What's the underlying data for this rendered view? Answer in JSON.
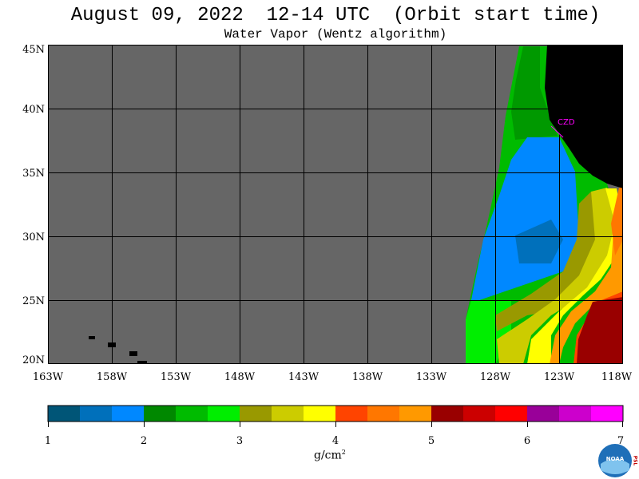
{
  "title": "August 09, 2022  12-14 UTC  (Orbit start time)",
  "subtitle": "Water Vapor (Wentz algorithm)",
  "map": {
    "lat_labels": [
      "45N",
      "40N",
      "35N",
      "30N",
      "25N",
      "20N"
    ],
    "lon_labels": [
      "163W",
      "158W",
      "153W",
      "148W",
      "143W",
      "138W",
      "133W",
      "128W",
      "123W",
      "118W"
    ],
    "station_label": "CZD",
    "colors": {
      "no_data": "#666666",
      "land": "#000000",
      "grid": "#000000",
      "station": "#ff00ff"
    }
  },
  "colorbar": {
    "colors": [
      "#005577",
      "#0070bb",
      "#0088ff",
      "#008800",
      "#00bb00",
      "#00ee00",
      "#999900",
      "#cccc00",
      "#ffff00",
      "#ff4400",
      "#ff7700",
      "#ff9900",
      "#990000",
      "#cc0000",
      "#ff0000",
      "#990099",
      "#cc00cc",
      "#ff00ff"
    ],
    "tick_labels": [
      "1",
      "2",
      "3",
      "4",
      "5",
      "6",
      "7"
    ],
    "unit": "g/cm",
    "unit_sup": "2"
  },
  "logo": {
    "text": "NOAA",
    "side_text": "PSL"
  }
}
